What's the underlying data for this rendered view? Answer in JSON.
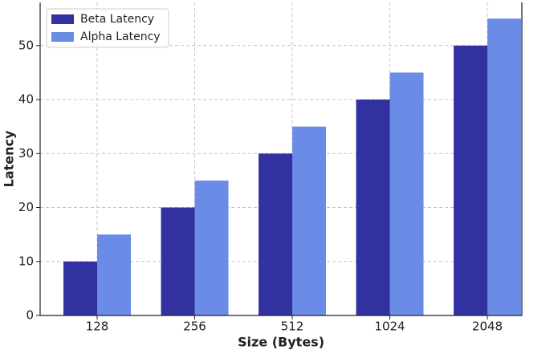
{
  "chart_data": {
    "type": "bar",
    "xlabel": "Size (Bytes)",
    "ylabel": "Latency",
    "categories": [
      "128",
      "256",
      "512",
      "1024",
      "2048"
    ],
    "series": [
      {
        "name": "Beta Latency",
        "color": "#3131a0",
        "values": [
          10,
          20,
          30,
          40,
          50
        ]
      },
      {
        "name": "Alpha Latency",
        "color": "#6a8ce6",
        "values": [
          15,
          25,
          35,
          45,
          55
        ]
      }
    ],
    "ylim": [
      0,
      58
    ],
    "yticks": [
      0,
      10,
      20,
      30,
      40,
      50
    ],
    "grid": true,
    "legend": "upper-left"
  }
}
